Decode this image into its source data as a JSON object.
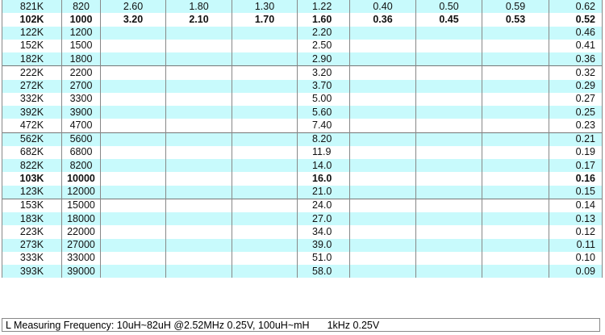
{
  "rows": [
    [
      "821K",
      "820",
      "2.60",
      "1.80",
      "1.30",
      "1.22",
      "0.40",
      "0.50",
      "0.59",
      "0.62"
    ],
    [
      "102K",
      "1000",
      "3.20",
      "2.10",
      "1.70",
      "1.60",
      "0.36",
      "0.45",
      "0.53",
      "0.52"
    ],
    [
      "122K",
      "1200",
      "",
      "",
      "",
      "2.20",
      "",
      "",
      "",
      "0.46"
    ],
    [
      "152K",
      "1500",
      "",
      "",
      "",
      "2.50",
      "",
      "",
      "",
      "0.41"
    ],
    [
      "182K",
      "1800",
      "",
      "",
      "",
      "2.90",
      "",
      "",
      "",
      "0.36"
    ],
    [
      "222K",
      "2200",
      "",
      "",
      "",
      "3.20",
      "",
      "",
      "",
      "0.32"
    ],
    [
      "272K",
      "2700",
      "",
      "",
      "",
      "3.70",
      "",
      "",
      "",
      "0.29"
    ],
    [
      "332K",
      "3300",
      "",
      "",
      "",
      "5.00",
      "",
      "",
      "",
      "0.27"
    ],
    [
      "392K",
      "3900",
      "",
      "",
      "",
      "5.60",
      "",
      "",
      "",
      "0.25"
    ],
    [
      "472K",
      "4700",
      "",
      "",
      "",
      "7.40",
      "",
      "",
      "",
      "0.23"
    ],
    [
      "562K",
      "5600",
      "",
      "",
      "",
      "8.20",
      "",
      "",
      "",
      "0.21"
    ],
    [
      "682K",
      "6800",
      "",
      "",
      "",
      "11.9",
      "",
      "",
      "",
      "0.19"
    ],
    [
      "822K",
      "8200",
      "",
      "",
      "",
      "14.0",
      "",
      "",
      "",
      "0.17"
    ],
    [
      "103K",
      "10000",
      "",
      "",
      "",
      "16.0",
      "",
      "",
      "",
      "0.16"
    ],
    [
      "123K",
      "12000",
      "",
      "",
      "",
      "21.0",
      "",
      "",
      "",
      "0.15"
    ],
    [
      "153K",
      "15000",
      "",
      "",
      "",
      "24.0",
      "",
      "",
      "",
      "0.14"
    ],
    [
      "183K",
      "18000",
      "",
      "",
      "",
      "27.0",
      "",
      "",
      "",
      "0.13"
    ],
    [
      "223K",
      "22000",
      "",
      "",
      "",
      "34.0",
      "",
      "",
      "",
      "0.12"
    ],
    [
      "273K",
      "27000",
      "",
      "",
      "",
      "39.0",
      "",
      "",
      "",
      "0.11"
    ],
    [
      "333K",
      "33000",
      "",
      "",
      "",
      "51.0",
      "",
      "",
      "",
      "0.10"
    ],
    [
      "393K",
      "39000",
      "",
      "",
      "",
      "58.0",
      "",
      "",
      "",
      "0.09"
    ]
  ],
  "bold_rows": [
    1,
    13
  ],
  "footer": {
    "part1": "L Measuring Frequency: 10uH~82uH @2.52MHz 0.25V, 100uH~mH",
    "part2": "1kHz 0.25V"
  },
  "colors": {
    "stripe": "#c8fafc"
  }
}
